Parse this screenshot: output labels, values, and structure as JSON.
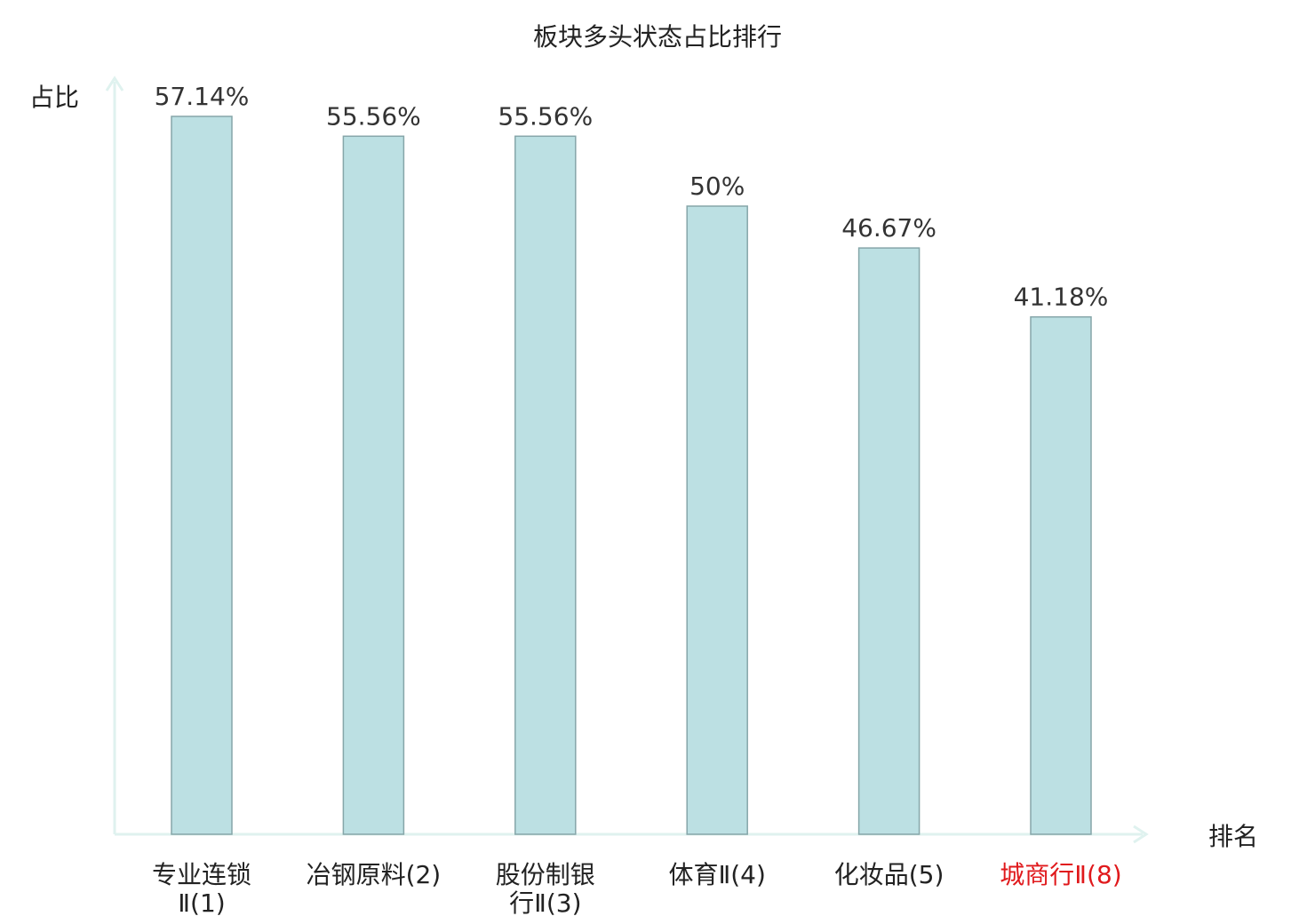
{
  "chart_data": {
    "type": "bar",
    "title": "板块多头状态占比排行",
    "xlabel": "排名",
    "ylabel": "占比",
    "categories": [
      {
        "lines": [
          "专业连锁",
          "Ⅱ(1)"
        ],
        "highlight": false
      },
      {
        "lines": [
          "冶钢原料(2)"
        ],
        "highlight": false
      },
      {
        "lines": [
          "股份制银",
          "行Ⅱ(3)"
        ],
        "highlight": false
      },
      {
        "lines": [
          "体育Ⅱ(4)"
        ],
        "highlight": false
      },
      {
        "lines": [
          "化妆品(5)"
        ],
        "highlight": false
      },
      {
        "lines": [
          "城商行Ⅱ(8)"
        ],
        "highlight": true
      }
    ],
    "values": [
      57.14,
      55.56,
      55.56,
      50,
      46.67,
      41.18
    ],
    "value_labels": [
      "57.14%",
      "55.56%",
      "55.56%",
      "50%",
      "46.67%",
      "41.18%"
    ],
    "ylim": [
      0,
      57.14
    ],
    "grid": false,
    "legend": "none",
    "colors": {
      "bar_fill": "#bce0e3",
      "bar_stroke": "#86a6a9",
      "axis": "#dff2ef",
      "label_text": "#333333",
      "highlight_text": "#e0191c"
    }
  }
}
